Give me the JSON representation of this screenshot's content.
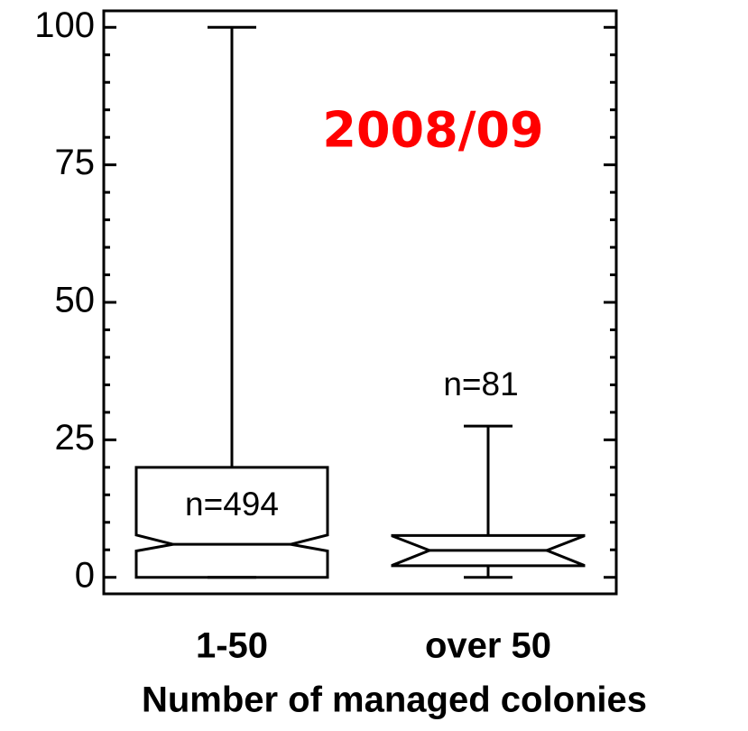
{
  "chart_data": {
    "type": "box",
    "categories": [
      "1-50",
      "over 50"
    ],
    "boxes": [
      {
        "min": 0,
        "q1": 0,
        "median": 6,
        "q3": 20,
        "max": 100,
        "notch_low": 4.8,
        "notch_high": 7.7
      },
      {
        "min": 0,
        "q1": 2.1,
        "median": 4.9,
        "q3": 7.6,
        "max": 27.5,
        "notch_low": 2.2,
        "notch_high": 7.5
      }
    ],
    "xlabel": "Number of managed colonies",
    "ylim": [
      -3,
      103
    ],
    "yticks": [
      0,
      25,
      50,
      75,
      100
    ],
    "yminorticks": [
      5,
      10,
      15,
      20,
      30,
      35,
      40,
      45,
      55,
      60,
      65,
      70,
      80,
      85,
      90,
      95
    ],
    "annotations": [
      "2008/09",
      "n=494",
      "n=81"
    ],
    "annotation_color": "#ff0000"
  }
}
